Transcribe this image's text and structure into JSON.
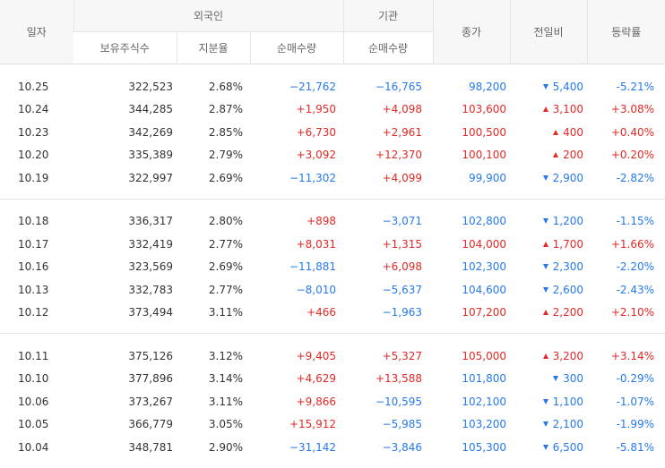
{
  "headers": {
    "date": "일자",
    "foreign": "외국인",
    "institution": "기관",
    "close": "종가",
    "change": "전일비",
    "rate": "등락률",
    "holdings": "보유주식수",
    "share": "지분율",
    "foreign_net": "순매수량",
    "inst_net": "순매수량"
  },
  "colors": {
    "up": "#e22926",
    "down": "#2679ed"
  },
  "groups": [
    {
      "rows": [
        {
          "date": "10.25",
          "holdings": "322,523",
          "share": "2.68%",
          "foreign_net": "−21,762",
          "inst_net": "−16,765",
          "close": "98,200",
          "change": "5,400",
          "dir": "down",
          "rate": "-5.21%"
        },
        {
          "date": "10.24",
          "holdings": "344,285",
          "share": "2.87%",
          "foreign_net": "+1,950",
          "inst_net": "+4,098",
          "close": "103,600",
          "change": "3,100",
          "dir": "up",
          "rate": "+3.08%"
        },
        {
          "date": "10.23",
          "holdings": "342,269",
          "share": "2.85%",
          "foreign_net": "+6,730",
          "inst_net": "+2,961",
          "close": "100,500",
          "change": "400",
          "dir": "up",
          "rate": "+0.40%"
        },
        {
          "date": "10.20",
          "holdings": "335,389",
          "share": "2.79%",
          "foreign_net": "+3,092",
          "inst_net": "+12,370",
          "close": "100,100",
          "change": "200",
          "dir": "up",
          "rate": "+0.20%"
        },
        {
          "date": "10.19",
          "holdings": "322,997",
          "share": "2.69%",
          "foreign_net": "−11,302",
          "inst_net": "+4,099",
          "close": "99,900",
          "change": "2,900",
          "dir": "down",
          "rate": "-2.82%"
        }
      ]
    },
    {
      "rows": [
        {
          "date": "10.18",
          "holdings": "336,317",
          "share": "2.80%",
          "foreign_net": "+898",
          "inst_net": "−3,071",
          "close": "102,800",
          "change": "1,200",
          "dir": "down",
          "rate": "-1.15%"
        },
        {
          "date": "10.17",
          "holdings": "332,419",
          "share": "2.77%",
          "foreign_net": "+8,031",
          "inst_net": "+1,315",
          "close": "104,000",
          "change": "1,700",
          "dir": "up",
          "rate": "+1.66%"
        },
        {
          "date": "10.16",
          "holdings": "323,569",
          "share": "2.69%",
          "foreign_net": "−11,881",
          "inst_net": "+6,098",
          "close": "102,300",
          "change": "2,300",
          "dir": "down",
          "rate": "-2.20%"
        },
        {
          "date": "10.13",
          "holdings": "332,783",
          "share": "2.77%",
          "foreign_net": "−8,010",
          "inst_net": "−5,637",
          "close": "104,600",
          "change": "2,600",
          "dir": "down",
          "rate": "-2.43%"
        },
        {
          "date": "10.12",
          "holdings": "373,494",
          "share": "3.11%",
          "foreign_net": "+466",
          "inst_net": "−1,963",
          "close": "107,200",
          "change": "2,200",
          "dir": "up",
          "rate": "+2.10%"
        }
      ]
    },
    {
      "rows": [
        {
          "date": "10.11",
          "holdings": "375,126",
          "share": "3.12%",
          "foreign_net": "+9,405",
          "inst_net": "+5,327",
          "close": "105,000",
          "change": "3,200",
          "dir": "up",
          "rate": "+3.14%"
        },
        {
          "date": "10.10",
          "holdings": "377,896",
          "share": "3.14%",
          "foreign_net": "+4,629",
          "inst_net": "+13,588",
          "close": "101,800",
          "change": "300",
          "dir": "down",
          "rate": "-0.29%"
        },
        {
          "date": "10.06",
          "holdings": "373,267",
          "share": "3.11%",
          "foreign_net": "+9,866",
          "inst_net": "−10,595",
          "close": "102,100",
          "change": "1,100",
          "dir": "down",
          "rate": "-1.07%"
        },
        {
          "date": "10.05",
          "holdings": "366,779",
          "share": "3.05%",
          "foreign_net": "+15,912",
          "inst_net": "−5,985",
          "close": "103,200",
          "change": "2,100",
          "dir": "down",
          "rate": "-1.99%"
        },
        {
          "date": "10.04",
          "holdings": "348,781",
          "share": "2.90%",
          "foreign_net": "−31,142",
          "inst_net": "−3,846",
          "close": "105,300",
          "change": "6,500",
          "dir": "down",
          "rate": "-5.81%"
        }
      ]
    }
  ]
}
